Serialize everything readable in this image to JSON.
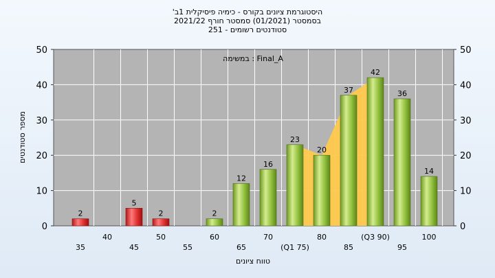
{
  "title_lines": [
    "'היסטוגרמת ציונים בקורס - כימיה פיסיקלית 1ב",
    "בסמסטר  (01/2021)  סמסטר חורף  2021/22",
    "סטודנטים רשומים - 251"
  ],
  "chart_data": {
    "type": "bar",
    "title": "'היסטוגרמת ציונים בקורס - כימיה פיסיקלית 1ב",
    "annotation": "במשימה : Final_A",
    "xlabel": "טווח ציונים",
    "ylabel": "מספר סטודנטים",
    "ylim": [
      0,
      50
    ],
    "yticks": [
      0,
      10,
      20,
      30,
      40,
      50
    ],
    "grid": true,
    "legend": "none",
    "categories": [
      "35",
      "40",
      "45",
      "50",
      "55",
      "60",
      "65",
      "70",
      "75",
      "80",
      "85",
      "90",
      "95",
      "100"
    ],
    "tick_labels": [
      "35",
      "40",
      "45",
      "50",
      "55",
      "60",
      "65",
      "70",
      "(Q1 75)",
      "80",
      "85",
      "(Q3 90)",
      "95",
      "100"
    ],
    "values": [
      2,
      0,
      5,
      2,
      0,
      2,
      12,
      16,
      23,
      20,
      37,
      42,
      36,
      14
    ],
    "data_labels": [
      "2",
      "",
      "5",
      "2",
      "",
      "2",
      "12",
      "16",
      "23",
      "20",
      "37",
      "42",
      "36",
      "14"
    ],
    "bar_colors": [
      "red",
      "",
      "red",
      "red",
      "",
      "green",
      "green",
      "green",
      "green",
      "green",
      "green",
      "green",
      "green",
      "green"
    ],
    "quartile_band": {
      "from": "75",
      "to": "90",
      "color": "#ffc94d"
    },
    "colors": {
      "plot_bg": "#b4b4b4",
      "red_bar": "#dd3030",
      "green_bar": "#8fbe3c"
    }
  }
}
